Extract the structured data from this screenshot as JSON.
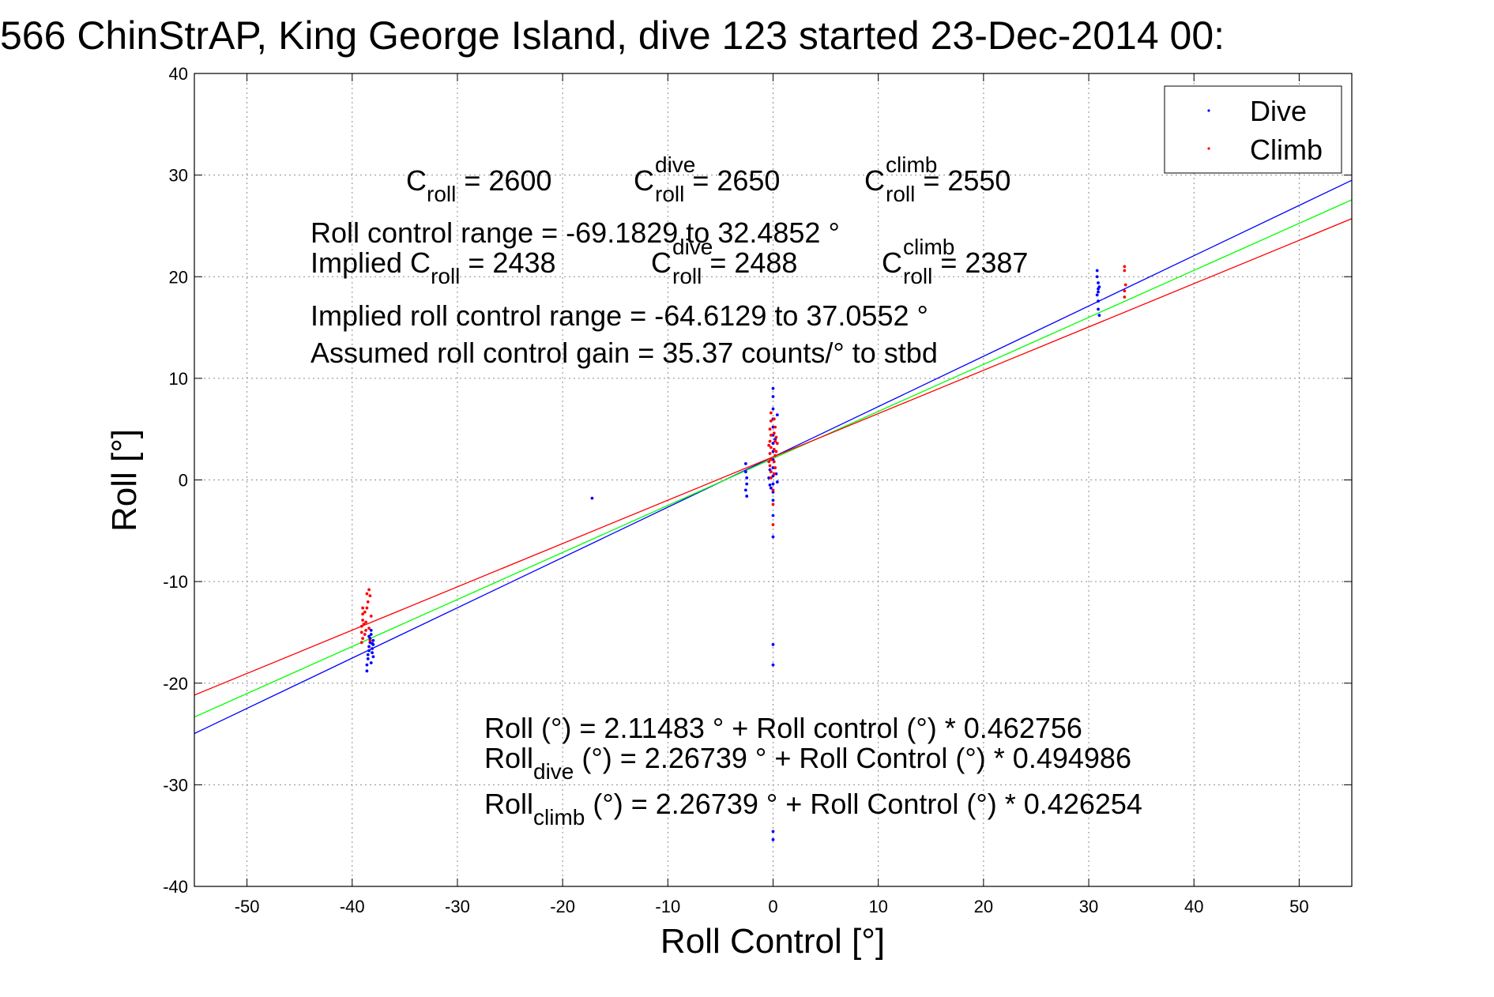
{
  "chart_data": {
    "type": "scatter",
    "title": "566 ChinStrAP, King George Island, dive 123 started 23-Dec-2014 00:",
    "xlabel": "Roll Control [°]",
    "ylabel": "Roll [°]",
    "xlim": [
      -55,
      55
    ],
    "ylim": [
      -40,
      40
    ],
    "xticks": [
      -50,
      -40,
      -30,
      -20,
      -10,
      0,
      10,
      20,
      30,
      40,
      50
    ],
    "yticks": [
      -40,
      -30,
      -20,
      -10,
      0,
      10,
      20,
      30,
      40
    ],
    "xtick_labels": [
      "-50",
      "-40",
      "-30",
      "-20",
      "-10",
      "0",
      "10",
      "20",
      "30",
      "40",
      "50"
    ],
    "ytick_labels": [
      "-40",
      "-30",
      "-20",
      "-10",
      "0",
      "10",
      "20",
      "30",
      "40"
    ],
    "grid": true,
    "legend_position": "top-right",
    "series": [
      {
        "name": "Dive",
        "color": "#0000ff",
        "points": [
          [
            -38.6,
            -18.8
          ],
          [
            -38.6,
            -18.2
          ],
          [
            -38.5,
            -17.6
          ],
          [
            -38.5,
            -17.2
          ],
          [
            -38.4,
            -16.8
          ],
          [
            -38.4,
            -16.4
          ],
          [
            -38.3,
            -16.0
          ],
          [
            -38.3,
            -15.6
          ],
          [
            -38.2,
            -15.2
          ],
          [
            -38.2,
            -14.8
          ],
          [
            -38.1,
            -17.0
          ],
          [
            -38.1,
            -16.6
          ],
          [
            -38.0,
            -16.2
          ],
          [
            -38.0,
            -15.8
          ],
          [
            -38.0,
            -17.4
          ],
          [
            -38.2,
            -18.0
          ],
          [
            -38.4,
            -15.4
          ],
          [
            -38.1,
            -16.1
          ],
          [
            -17.2,
            -1.8
          ],
          [
            -2.6,
            1.6
          ],
          [
            -2.6,
            0.8
          ],
          [
            -2.5,
            0.2
          ],
          [
            -2.5,
            -0.4
          ],
          [
            -2.6,
            -1.0
          ],
          [
            -2.5,
            -1.6
          ],
          [
            0.0,
            9.0
          ],
          [
            0.0,
            8.2
          ],
          [
            0.0,
            7.0
          ],
          [
            0.0,
            6.0
          ],
          [
            0.0,
            5.2
          ],
          [
            0.0,
            4.4
          ],
          [
            0.0,
            3.6
          ],
          [
            0.0,
            2.8
          ],
          [
            0.0,
            2.0
          ],
          [
            0.0,
            1.2
          ],
          [
            0.0,
            0.4
          ],
          [
            0.0,
            -0.4
          ],
          [
            0.0,
            -1.2
          ],
          [
            0.0,
            -2.0
          ],
          [
            0.0,
            -3.5
          ],
          [
            0.0,
            -5.6
          ],
          [
            0.0,
            -16.2
          ],
          [
            0.0,
            -18.2
          ],
          [
            0.0,
            -34.6
          ],
          [
            0.0,
            -35.4
          ],
          [
            -0.3,
            1.0
          ],
          [
            -0.4,
            0.2
          ],
          [
            -0.2,
            -0.8
          ],
          [
            0.3,
            0.6
          ],
          [
            0.4,
            -0.2
          ],
          [
            -0.3,
            -0.5
          ],
          [
            0.2,
            4.0
          ],
          [
            0.4,
            6.4
          ],
          [
            30.8,
            20.6
          ],
          [
            30.8,
            20.0
          ],
          [
            30.9,
            19.4
          ],
          [
            30.9,
            18.8
          ],
          [
            30.8,
            18.2
          ],
          [
            30.9,
            17.6
          ],
          [
            30.9,
            16.8
          ],
          [
            31.0,
            16.2
          ],
          [
            31.0,
            19.0
          ],
          [
            30.9,
            18.5
          ]
        ]
      },
      {
        "name": "Climb",
        "color": "#ff0000",
        "points": [
          [
            -39.0,
            -12.6
          ],
          [
            -39.0,
            -13.2
          ],
          [
            -39.0,
            -13.8
          ],
          [
            -39.1,
            -14.4
          ],
          [
            -39.1,
            -15.0
          ],
          [
            -39.0,
            -15.6
          ],
          [
            -39.1,
            -16.0
          ],
          [
            -38.8,
            -13.0
          ],
          [
            -38.7,
            -14.0
          ],
          [
            -38.7,
            -14.8
          ],
          [
            -38.6,
            -11.2
          ],
          [
            -38.4,
            -10.8
          ],
          [
            -38.3,
            -11.4
          ],
          [
            -38.2,
            -13.4
          ],
          [
            -38.5,
            -12.0
          ],
          [
            -38.8,
            -15.2
          ],
          [
            -38.9,
            -14.2
          ],
          [
            -38.6,
            -12.6
          ],
          [
            -38.4,
            -14.6
          ],
          [
            -38.3,
            -15.8
          ],
          [
            -0.2,
            6.6
          ],
          [
            -0.2,
            5.8
          ],
          [
            -0.3,
            5.0
          ],
          [
            -0.2,
            4.4
          ],
          [
            -0.3,
            3.8
          ],
          [
            -0.2,
            3.2
          ],
          [
            -0.3,
            2.6
          ],
          [
            -0.2,
            2.0
          ],
          [
            -0.3,
            1.4
          ],
          [
            -0.2,
            0.8
          ],
          [
            -0.2,
            0.2
          ],
          [
            0.1,
            6.0
          ],
          [
            0.2,
            5.2
          ],
          [
            0.1,
            4.6
          ],
          [
            0.2,
            3.8
          ],
          [
            0.1,
            3.0
          ],
          [
            0.2,
            2.4
          ],
          [
            0.1,
            1.8
          ],
          [
            0.2,
            1.2
          ],
          [
            0.1,
            0.6
          ],
          [
            0.3,
            4.2
          ],
          [
            0.3,
            2.8
          ],
          [
            -0.4,
            3.4
          ],
          [
            -0.4,
            1.8
          ],
          [
            0.0,
            -1.0
          ],
          [
            0.0,
            -2.4
          ],
          [
            0.0,
            -4.4
          ],
          [
            0.4,
            3.6
          ],
          [
            33.4,
            21.0
          ],
          [
            33.4,
            20.6
          ],
          [
            33.5,
            19.2
          ],
          [
            33.4,
            18.6
          ],
          [
            33.4,
            18.0
          ]
        ]
      }
    ],
    "fit_lines": [
      {
        "name": "Roll_dive fit",
        "color": "#0000ff",
        "intercept": 2.26739,
        "slope": 0.494986
      },
      {
        "name": "Roll fit",
        "color": "#00ff00",
        "intercept": 2.11483,
        "slope": 0.462756
      },
      {
        "name": "Roll_climb fit",
        "color": "#ff0000",
        "intercept": 2.26739,
        "slope": 0.426254
      }
    ],
    "annotations": {
      "c_line": {
        "a_main": "C",
        "a_sub": "roll",
        "a_val": " = 2600",
        "b_main": "C",
        "b_sup": "dive",
        "b_sub": "roll",
        "b_val": " = 2650",
        "c_main": "C",
        "c_sup": "climb",
        "c_sub": "roll",
        "c_val": " = 2550"
      },
      "range_line": "Roll control range = -69.1829 to 32.4852 °",
      "implied_line": {
        "a_main": "Implied C",
        "a_sub": "roll",
        "a_val": " = 2438",
        "b_main": "C",
        "b_sup": "dive",
        "b_sub": "roll",
        "b_val": " = 2488",
        "c_main": "C",
        "c_sup": "climb",
        "c_sub": "roll",
        "c_val": " = 2387"
      },
      "implied_range_line": "Implied roll control range = -64.6129 to 37.0552 °",
      "gain_line": "Assumed roll control gain = 35.37 counts/° to stbd",
      "eq1": "Roll (°) = 2.11483 ° + Roll control (°) * 0.462756",
      "eq2": {
        "main": "Roll",
        "sub": "dive",
        "rest": " (°) = 2.26739 ° + Roll Control (°) * 0.494986"
      },
      "eq3": {
        "main": "Roll",
        "sub": "climb",
        "rest": " (°) = 2.26739 ° + Roll Control (°) * 0.426254"
      }
    }
  }
}
